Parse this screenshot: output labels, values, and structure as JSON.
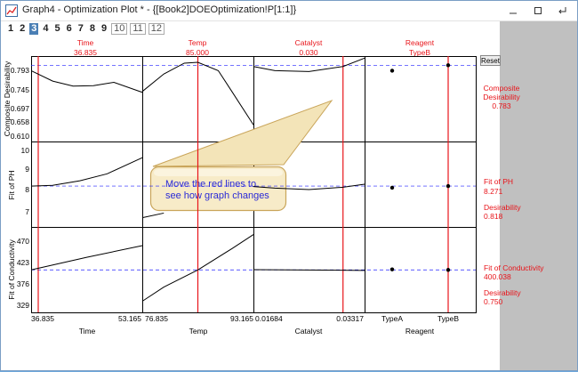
{
  "window": {
    "title": "Graph4 - Optimization Plot * - {[Book2]DOEOptimization!P[1:1]}",
    "minimize_icon": "minimize-icon",
    "maximize_icon": "maximize-icon",
    "restore_icon": "restore-icon"
  },
  "tabs": [
    {
      "label": "1"
    },
    {
      "label": "2"
    },
    {
      "label": "3",
      "active": true
    },
    {
      "label": "4"
    },
    {
      "label": "5"
    },
    {
      "label": "6"
    },
    {
      "label": "7"
    },
    {
      "label": "8"
    },
    {
      "label": "9"
    },
    {
      "label": "10",
      "dim": true
    },
    {
      "label": "11",
      "dim": true
    },
    {
      "label": "12",
      "dim": true
    }
  ],
  "reset_label": "Reset",
  "colors": {
    "red": "#e8141a",
    "accent": "#4a7fb5",
    "dash": "#2020ff"
  },
  "factors": [
    {
      "name": "Time",
      "value": "36.835",
      "xlabel": "Time",
      "min_label": "36.835",
      "max_label": "53.165"
    },
    {
      "name": "Temp",
      "value": "85.000",
      "xlabel": "Temp",
      "min_label": "76.835",
      "max_label": "93.165"
    },
    {
      "name": "Catalyst",
      "value": "0.030",
      "xlabel": "Catalyst",
      "min_label": "0.01684",
      "max_label": "0.03317"
    },
    {
      "name": "Reagent",
      "value": "TypeB",
      "xlabel": "Reagent",
      "min_label": "TypeA",
      "max_label": "TypeB"
    }
  ],
  "rows": [
    {
      "ylabel": "Composite Desirability",
      "ticks": [
        "0.793",
        "0.745",
        "0.697",
        "0.658",
        "0.610"
      ],
      "side": [
        {
          "text": "Composite"
        },
        {
          "text": "Desirability"
        },
        {
          "text": "0.783"
        }
      ]
    },
    {
      "ylabel": "Fit of PH",
      "ticks": [
        "10",
        "9",
        "8",
        "7"
      ],
      "side": [
        {
          "text": "Fit of PH"
        },
        {
          "text": "8.271"
        },
        {
          "text": "Desirability"
        },
        {
          "text": "0.818"
        }
      ]
    },
    {
      "ylabel": "Fit of Conductivity",
      "ticks": [
        "470",
        "423",
        "376",
        "329"
      ],
      "side": [
        {
          "text": "Fit of Conductivity"
        },
        {
          "text": "400.038"
        },
        {
          "text": "Desirability"
        },
        {
          "text": "0.750"
        }
      ]
    }
  ],
  "callout": {
    "line1": "Move the red lines to",
    "line2": "see how graph changes"
  },
  "chart_data": {
    "type": "line",
    "panels": [
      {
        "row": "Composite Desirability",
        "col": "Time",
        "x": [
          36.835,
          40,
          43,
          46,
          49,
          53.165
        ],
        "y": [
          0.77,
          0.745,
          0.733,
          0.734,
          0.742,
          0.718
        ]
      },
      {
        "row": "Composite Desirability",
        "col": "Temp",
        "x": [
          76.835,
          80,
          83,
          85,
          88,
          90,
          93.165
        ],
        "y": [
          0.72,
          0.762,
          0.788,
          0.79,
          0.77,
          0.72,
          0.64
        ]
      },
      {
        "row": "Composite Desirability",
        "col": "Catalyst",
        "x": [
          0.01684,
          0.02,
          0.025,
          0.03,
          0.03317
        ],
        "y": [
          0.78,
          0.77,
          0.768,
          0.78,
          0.8
        ]
      },
      {
        "row": "Composite Desirability",
        "col": "Reagent",
        "x": [
          "TypeA",
          "TypeB"
        ],
        "y": [
          0.77,
          0.783
        ]
      },
      {
        "row": "Fit of PH",
        "col": "Time",
        "x": [
          36.835,
          40,
          44,
          48,
          53.165
        ],
        "y": [
          8.27,
          8.3,
          8.5,
          8.8,
          9.5
        ]
      },
      {
        "row": "Fit of PH",
        "col": "Temp",
        "x": [
          76.835,
          80
        ],
        "y": [
          6.9,
          7.1
        ]
      },
      {
        "row": "Fit of PH",
        "col": "Catalyst",
        "x": [
          0.01684,
          0.02,
          0.025,
          0.03,
          0.03317
        ],
        "y": [
          8.25,
          8.18,
          8.12,
          8.22,
          8.35
        ]
      },
      {
        "row": "Fit of PH",
        "col": "Reagent",
        "x": [
          "TypeA",
          "TypeB"
        ],
        "y": [
          8.2,
          8.271
        ]
      },
      {
        "row": "Fit of Conductivity",
        "col": "Time",
        "x": [
          36.835,
          45,
          53.165
        ],
        "y": [
          400,
          425,
          448
        ]
      },
      {
        "row": "Fit of Conductivity",
        "col": "Temp",
        "x": [
          76.835,
          80,
          85,
          90,
          93.165
        ],
        "y": [
          338,
          366,
          400,
          442,
          470
        ]
      },
      {
        "row": "Fit of Conductivity",
        "col": "Catalyst",
        "x": [
          0.01684,
          0.03317
        ],
        "y": [
          400.5,
          399
        ]
      },
      {
        "row": "Fit of Conductivity",
        "col": "Reagent",
        "x": [
          "TypeA",
          "TypeB"
        ],
        "y": [
          401,
          400.038
        ]
      }
    ]
  }
}
